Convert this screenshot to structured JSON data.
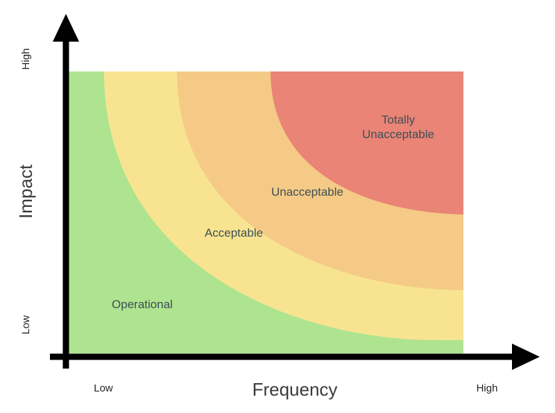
{
  "colors": {
    "operational": "#aee48f",
    "acceptable": "#f8e490",
    "unacceptable": "#f5ca86",
    "totally_unacceptable": "#e98476",
    "axis": "#000000"
  },
  "zones": {
    "operational": "Operational",
    "acceptable": "Acceptable",
    "unacceptable": "Unacceptable",
    "totally_unacceptable_line1": "Totally",
    "totally_unacceptable_line2": "Unacceptable"
  },
  "axes": {
    "x_title": "Frequency",
    "y_title": "Impact",
    "x_low": "Low",
    "x_high": "High",
    "y_low": "Low",
    "y_high": "High"
  }
}
